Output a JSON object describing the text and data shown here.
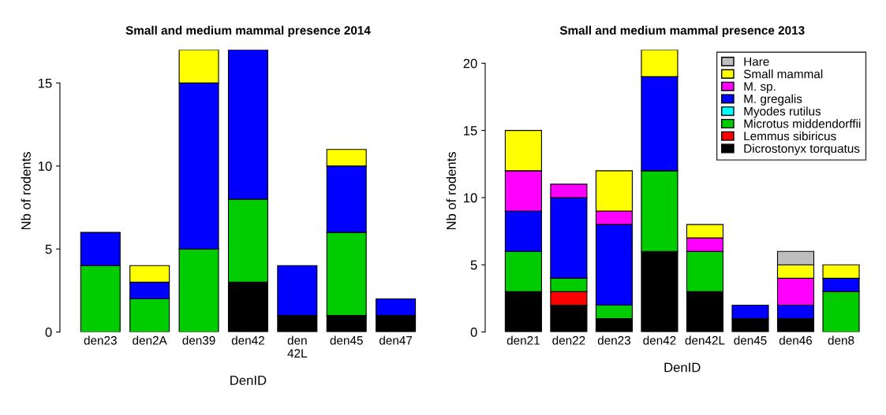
{
  "chart_data": [
    {
      "type": "bar",
      "stacked": true,
      "title": "Small and medium mammal presence 2014",
      "xlabel": "DenID",
      "ylabel": "Nb of rodents",
      "categories": [
        "den23",
        "den2A",
        "den39",
        "den42",
        "den\n42L",
        "den45",
        "den47"
      ],
      "ylim": [
        0,
        17
      ],
      "yticks": [
        0,
        5,
        10,
        15
      ],
      "grid": false,
      "legend": false,
      "series": [
        {
          "color": "#000000",
          "values": [
            null,
            null,
            null,
            3,
            1,
            1,
            1
          ]
        },
        {
          "color": "#00cc00",
          "values": [
            4,
            2,
            5,
            5,
            null,
            5,
            null
          ]
        },
        {
          "color": "#0000ff",
          "values": [
            2,
            1,
            10,
            9,
            3,
            4,
            1
          ]
        },
        {
          "color": "#ffff00",
          "values": [
            null,
            1,
            2,
            null,
            null,
            1,
            null
          ]
        }
      ]
    },
    {
      "type": "bar",
      "stacked": true,
      "title": "Small and medium mammal presence 2013",
      "xlabel": "DenID",
      "ylabel": "Nb of rodents",
      "categories": [
        "den21",
        "den22",
        "den23",
        "den42",
        "den42L",
        "den45",
        "den46",
        "den8"
      ],
      "ylim": [
        0,
        21
      ],
      "yticks": [
        0,
        5,
        10,
        15,
        20
      ],
      "grid": false,
      "legend": "top right",
      "series": [
        {
          "name": "Dicrostonyx torquatus",
          "color": "#000000",
          "values": [
            3,
            2,
            1,
            6,
            3,
            1,
            1,
            null
          ]
        },
        {
          "name": "Lemmus sibiricus",
          "color": "#ff0000",
          "values": [
            null,
            1,
            null,
            null,
            null,
            null,
            null,
            null
          ]
        },
        {
          "name": "Microtus middendorffii",
          "color": "#00cc00",
          "values": [
            3,
            1,
            1,
            6,
            3,
            null,
            null,
            3
          ]
        },
        {
          "name": "Myodes rutilus",
          "color": "#00ffff",
          "values": [
            null,
            null,
            null,
            null,
            null,
            null,
            null,
            null
          ]
        },
        {
          "name": "M. gregalis",
          "color": "#0000ff",
          "values": [
            3,
            6,
            6,
            7,
            null,
            1,
            1,
            1
          ]
        },
        {
          "name": "M. sp.",
          "color": "#ff00ff",
          "values": [
            3,
            1,
            1,
            null,
            1,
            null,
            2,
            null
          ]
        },
        {
          "name": "Small mammal",
          "color": "#ffff00",
          "values": [
            3,
            null,
            3,
            2,
            1,
            null,
            1,
            1
          ]
        },
        {
          "name": "Hare",
          "color": "#bebebe",
          "values": [
            null,
            null,
            null,
            null,
            null,
            null,
            1,
            null
          ]
        }
      ]
    }
  ]
}
